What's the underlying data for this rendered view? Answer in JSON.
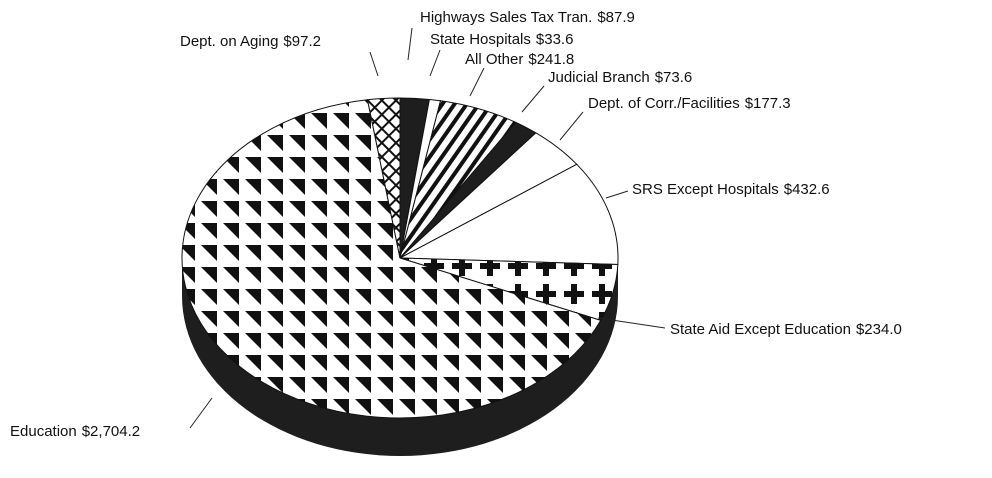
{
  "chart_data": {
    "type": "pie",
    "categories": [
      "Highways Sales Tax Tran.",
      "State Hospitals",
      "All Other",
      "Judicial Branch",
      "Dept. of Corr./Facilities",
      "SRS Except Hospitals",
      "State Aid Except Education",
      "Education",
      "Dept. on Aging"
    ],
    "values": [
      87.9,
      33.6,
      241.8,
      73.6,
      177.3,
      432.6,
      234.0,
      2704.2,
      97.2
    ],
    "value_labels": [
      "$87.9",
      "$33.6",
      "$241.8",
      "$73.6",
      "$177.3",
      "$432.6",
      "$234.0",
      "$2,704.2",
      "$97.2"
    ],
    "patterns": [
      "solid",
      "none",
      "stripes",
      "solid",
      "none",
      "none",
      "crosses",
      "triangles",
      "crosshatch"
    ]
  }
}
